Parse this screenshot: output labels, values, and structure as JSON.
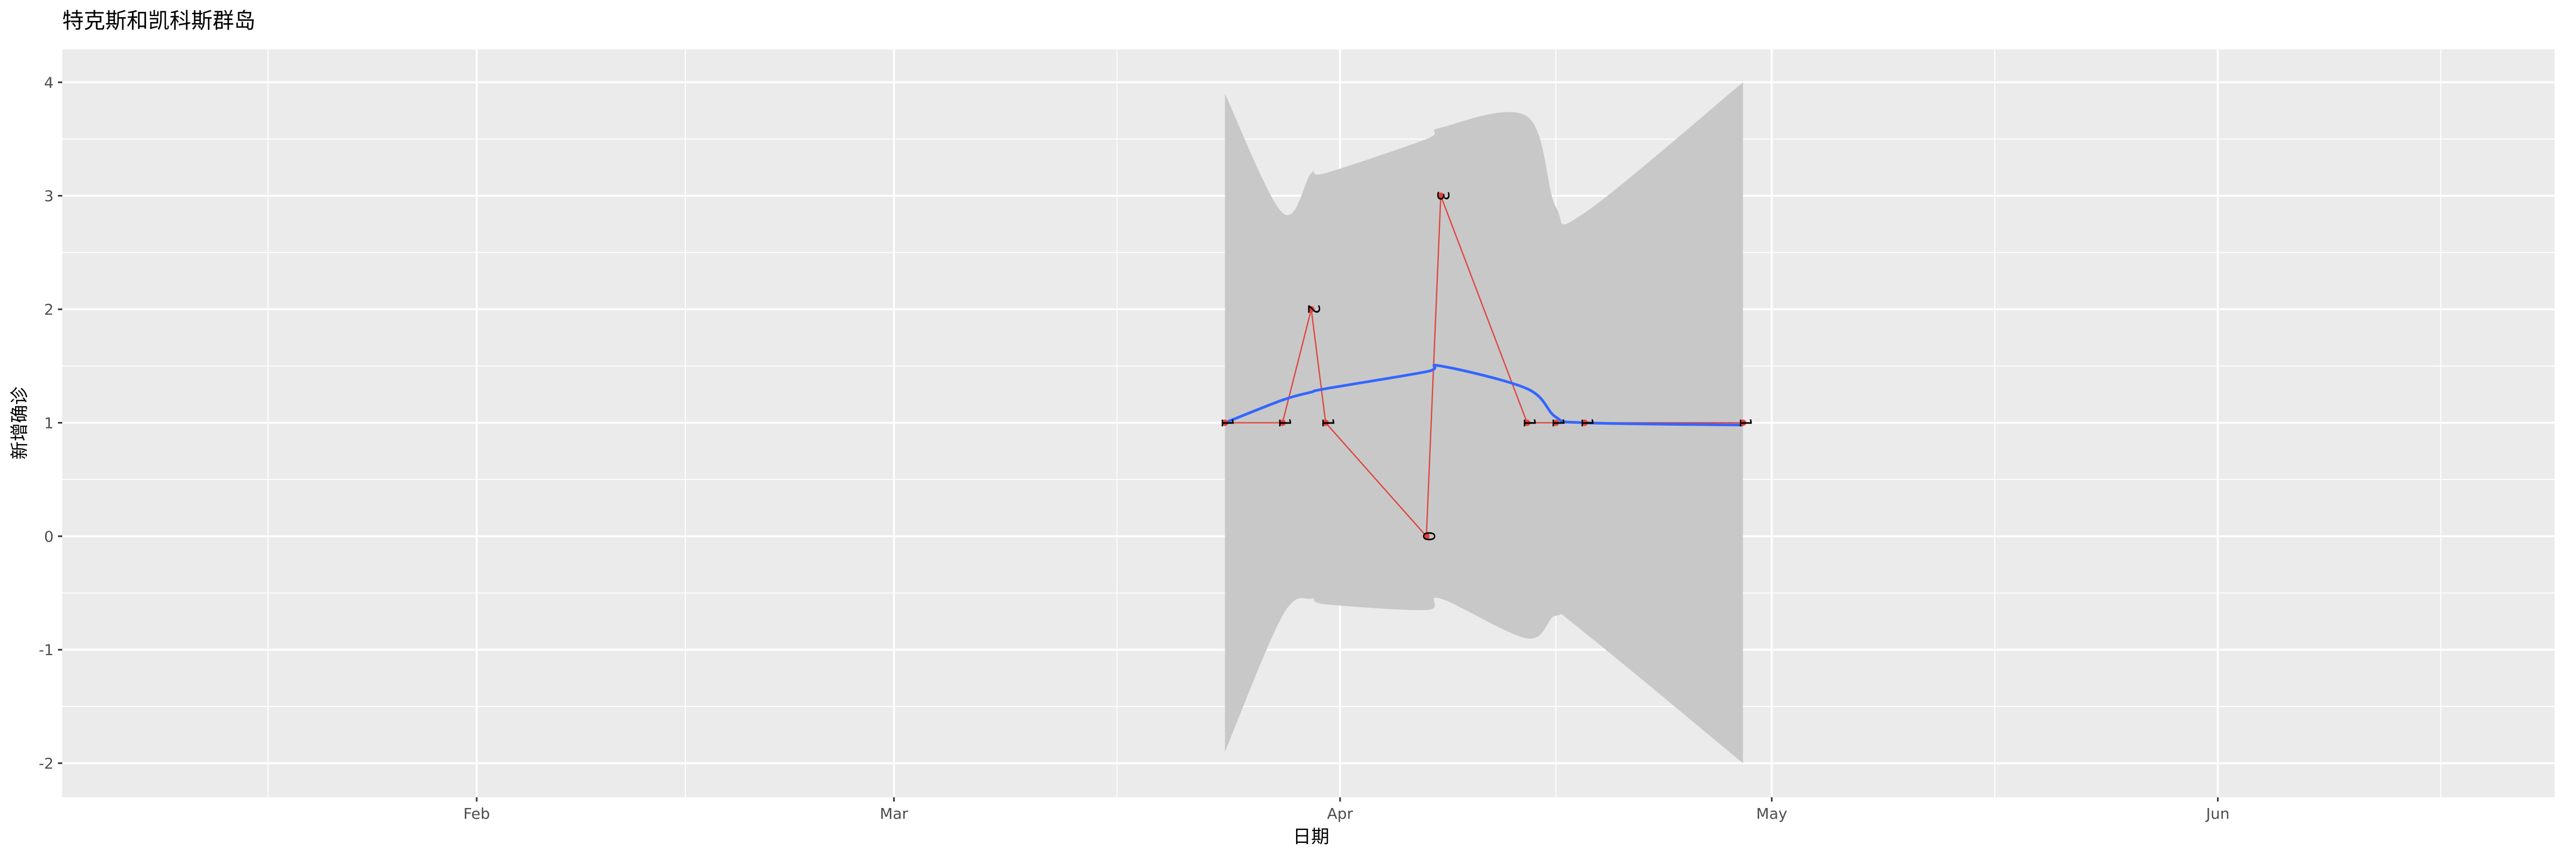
{
  "chart_data": {
    "type": "line",
    "title": "特克斯和凯科斯群岛",
    "x_label": "日期",
    "y_label": "新增确诊",
    "x": [
      84,
      88,
      90,
      91,
      98,
      99,
      105,
      107,
      109,
      120
    ],
    "values": [
      1,
      1,
      2,
      1,
      0,
      3,
      1,
      1,
      1,
      1
    ],
    "color": "#e0443e",
    "smooth": {
      "values": [
        1.0,
        1.2,
        1.27,
        1.3,
        1.45,
        1.5,
        1.3,
        1.05,
        1.0,
        0.98
      ],
      "color": "#3366ff"
    },
    "band": {
      "upper": [
        3.9,
        2.85,
        3.2,
        3.2,
        3.5,
        3.6,
        3.7,
        2.9,
        2.85,
        4.0
      ],
      "lower": [
        -1.9,
        -0.7,
        -0.55,
        -0.6,
        -0.65,
        -0.55,
        -0.9,
        -0.7,
        -0.85,
        -2.0
      ],
      "color": "#c8c8c8"
    },
    "xlim": [
      3.2,
      176.4
    ],
    "xticks": [
      {
        "value": 32,
        "label": "Feb"
      },
      {
        "value": 61,
        "label": "Mar"
      },
      {
        "value": 92,
        "label": "Apr"
      },
      {
        "value": 122,
        "label": "May"
      },
      {
        "value": 153,
        "label": "Jun"
      }
    ],
    "ylim": [
      -2.3,
      4.29
    ],
    "yticks": [
      -2,
      -1,
      0,
      1,
      2,
      3,
      4
    ],
    "grid": true
  }
}
